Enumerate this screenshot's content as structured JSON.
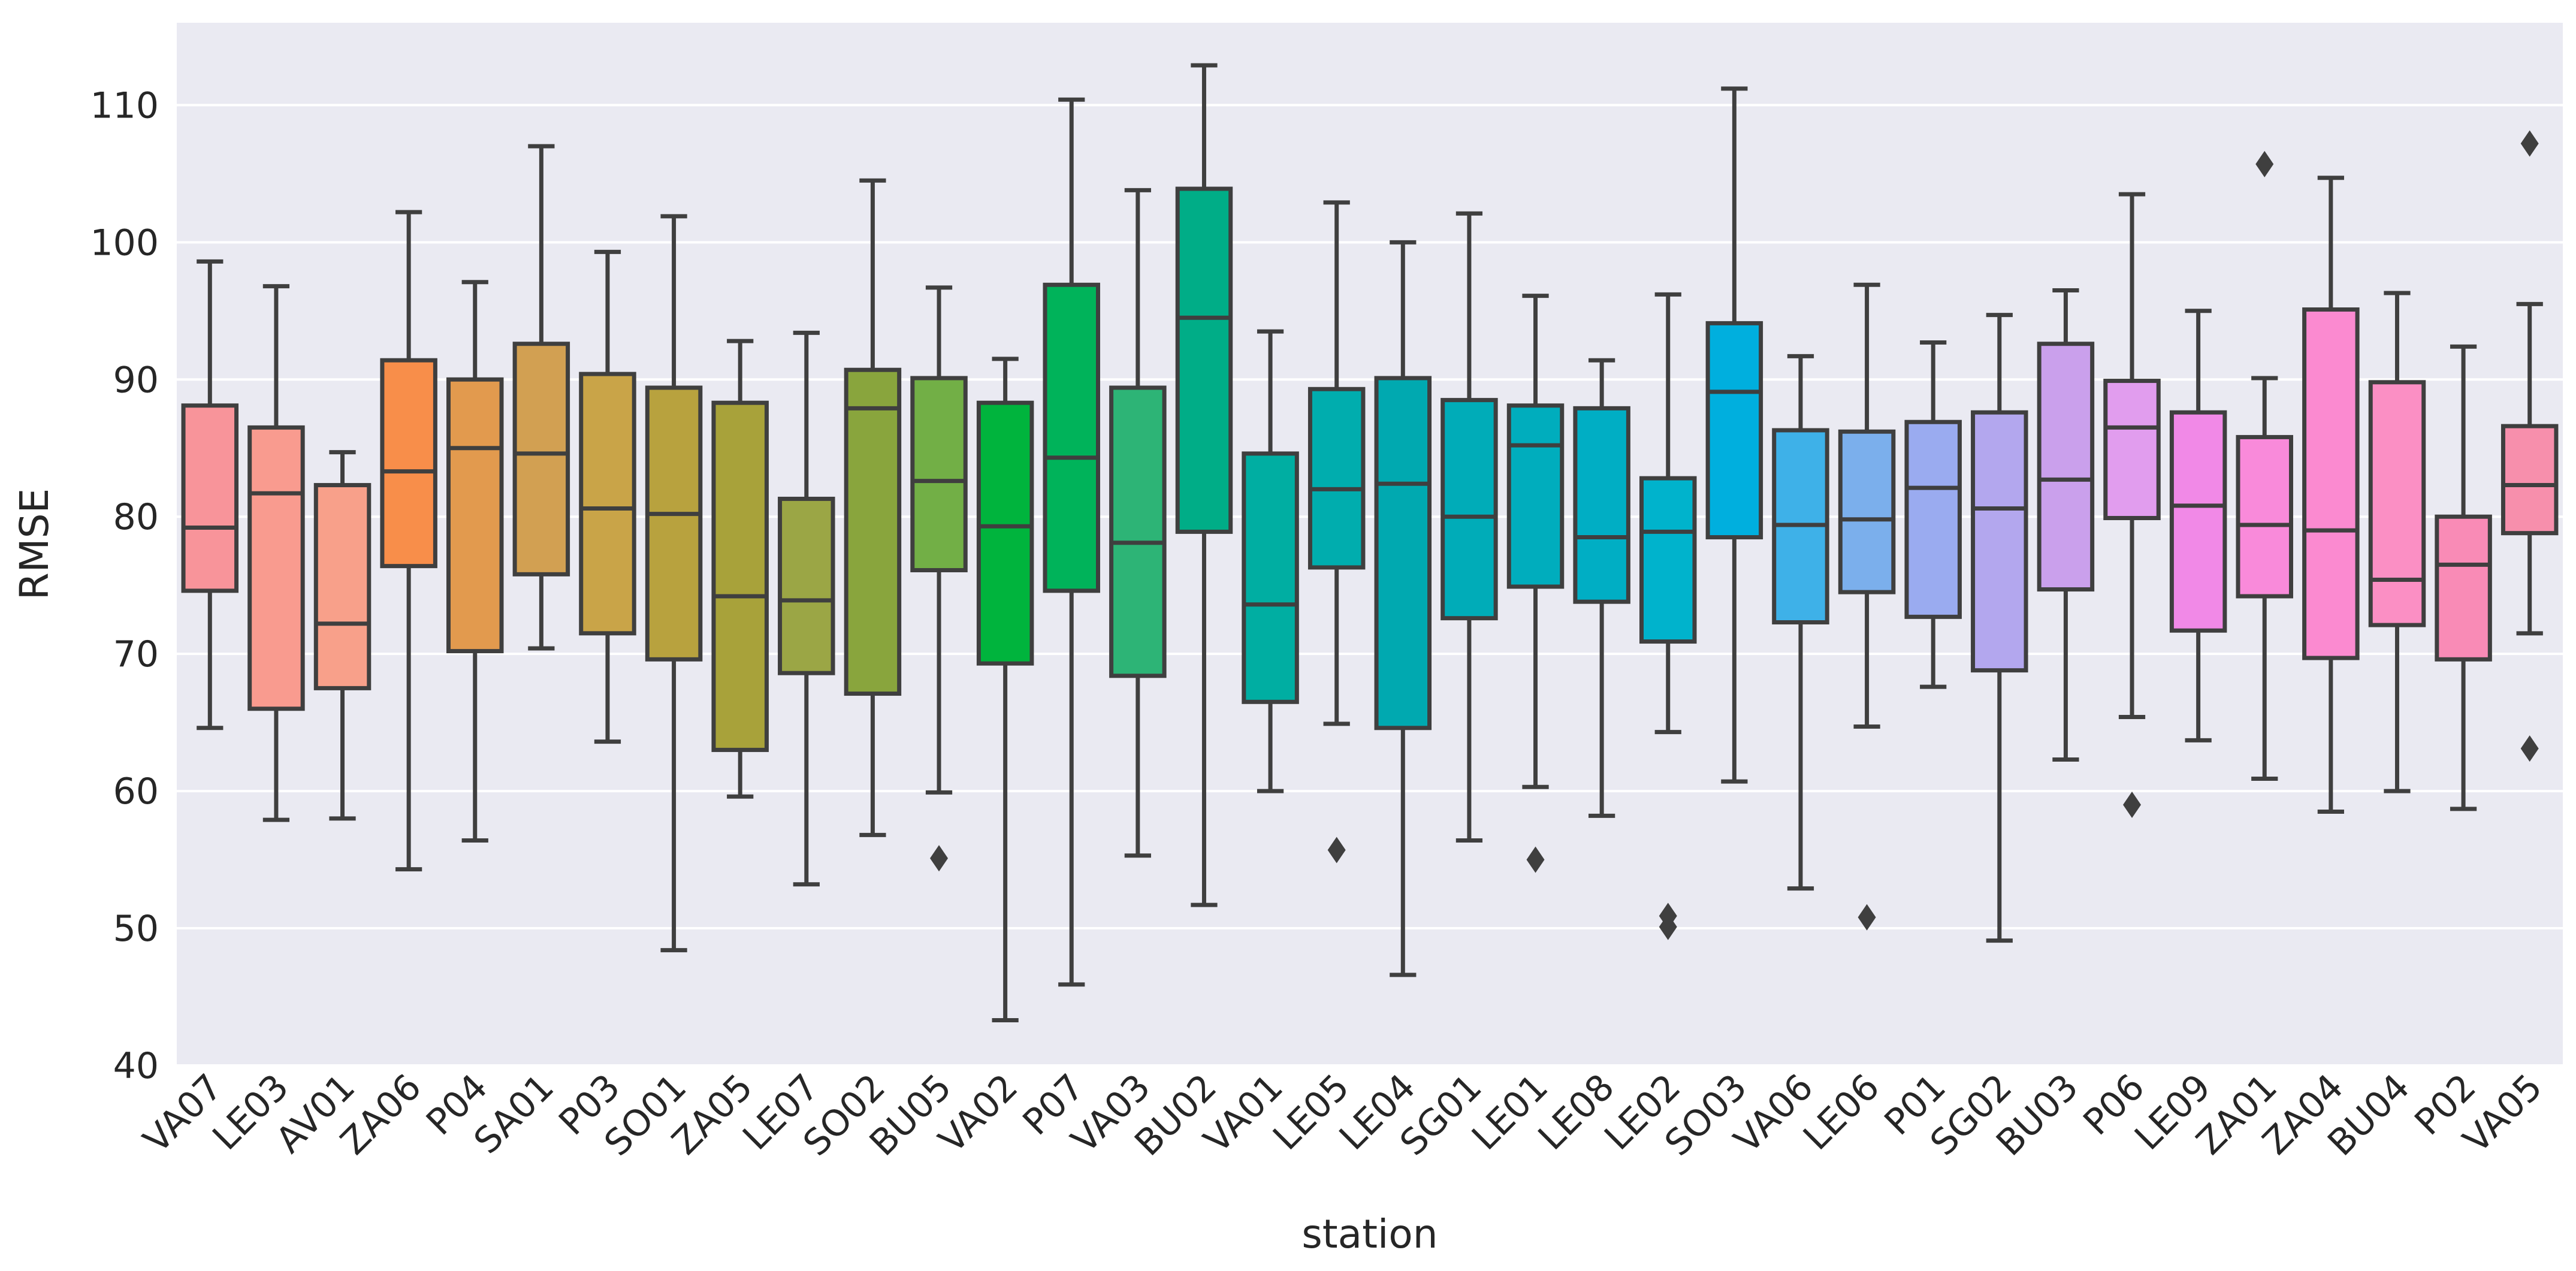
{
  "chart_data": {
    "type": "box",
    "xlabel": "station",
    "ylabel": "RMSE",
    "ylim": [
      40,
      116
    ],
    "yticks": [
      40,
      50,
      60,
      70,
      80,
      90,
      100,
      110
    ],
    "grid": true,
    "legend": "none",
    "categories": [
      "VA07",
      "LE03",
      "AV01",
      "ZA06",
      "P04",
      "SA01",
      "P03",
      "SO01",
      "ZA05",
      "LE07",
      "SO02",
      "BU05",
      "VA02",
      "P07",
      "VA03",
      "BU02",
      "VA01",
      "LE05",
      "LE04",
      "SG01",
      "LE01",
      "LE08",
      "LE02",
      "SO03",
      "VA06",
      "LE06",
      "P01",
      "SG02",
      "BU03",
      "P06",
      "LE09",
      "ZA01",
      "ZA04",
      "BU04",
      "P02",
      "VA05"
    ],
    "colors": [
      "#F8949A",
      "#F99B8F",
      "#F8A08A",
      "#F88E4A",
      "#E29A4E",
      "#D2A052",
      "#C9A448",
      "#B8A23E",
      "#A8A23A",
      "#9BA645",
      "#89A53D",
      "#72AF46",
      "#00B43D",
      "#00B35A",
      "#2DB476",
      "#00AD87",
      "#00AEA2",
      "#00ADAE",
      "#00A9B0",
      "#00ACB8",
      "#00ADBD",
      "#00AEC4",
      "#00B3CC",
      "#00AFDE",
      "#3EB1E8",
      "#7BAFEC",
      "#9AABF0",
      "#B3A7EE",
      "#CAA0EC",
      "#E19DEE",
      "#F189E7",
      "#F98ADA",
      "#FB8AD0",
      "#FB8FC4",
      "#F98BB6",
      "#F78FAC"
    ],
    "boxes": [
      {
        "whislo": 64.6,
        "q1": 74.6,
        "med": 79.2,
        "q3": 88.1,
        "whishi": 98.6,
        "fliers": []
      },
      {
        "whislo": 57.9,
        "q1": 66.0,
        "med": 81.7,
        "q3": 86.5,
        "whishi": 96.8,
        "fliers": []
      },
      {
        "whislo": 58.0,
        "q1": 67.5,
        "med": 72.2,
        "q3": 82.3,
        "whishi": 84.7,
        "fliers": []
      },
      {
        "whislo": 54.3,
        "q1": 76.4,
        "med": 83.3,
        "q3": 91.4,
        "whishi": 102.2,
        "fliers": []
      },
      {
        "whislo": 56.4,
        "q1": 70.2,
        "med": 85.0,
        "q3": 90.0,
        "whishi": 97.1,
        "fliers": []
      },
      {
        "whislo": 70.4,
        "q1": 75.8,
        "med": 84.6,
        "q3": 92.6,
        "whishi": 107.0,
        "fliers": []
      },
      {
        "whislo": 63.6,
        "q1": 71.5,
        "med": 80.6,
        "q3": 90.4,
        "whishi": 99.3,
        "fliers": []
      },
      {
        "whislo": 48.4,
        "q1": 69.6,
        "med": 80.2,
        "q3": 89.4,
        "whishi": 101.9,
        "fliers": []
      },
      {
        "whislo": 59.6,
        "q1": 63.0,
        "med": 74.2,
        "q3": 88.3,
        "whishi": 92.8,
        "fliers": []
      },
      {
        "whislo": 53.2,
        "q1": 68.6,
        "med": 73.9,
        "q3": 81.3,
        "whishi": 93.4,
        "fliers": []
      },
      {
        "whislo": 56.8,
        "q1": 67.1,
        "med": 87.9,
        "q3": 90.7,
        "whishi": 104.5,
        "fliers": []
      },
      {
        "whislo": 59.9,
        "q1": 76.1,
        "med": 82.6,
        "q3": 90.1,
        "whishi": 96.7,
        "fliers": [
          55.1
        ]
      },
      {
        "whislo": 43.3,
        "q1": 69.3,
        "med": 79.3,
        "q3": 88.3,
        "whishi": 91.5,
        "fliers": []
      },
      {
        "whislo": 45.9,
        "q1": 74.6,
        "med": 84.3,
        "q3": 96.9,
        "whishi": 110.4,
        "fliers": []
      },
      {
        "whislo": 55.3,
        "q1": 68.4,
        "med": 78.1,
        "q3": 89.4,
        "whishi": 103.8,
        "fliers": []
      },
      {
        "whislo": 51.7,
        "q1": 78.9,
        "med": 94.5,
        "q3": 103.9,
        "whishi": 112.9,
        "fliers": []
      },
      {
        "whislo": 60.0,
        "q1": 66.5,
        "med": 73.6,
        "q3": 84.6,
        "whishi": 93.5,
        "fliers": []
      },
      {
        "whislo": 64.9,
        "q1": 76.3,
        "med": 82.0,
        "q3": 89.3,
        "whishi": 102.9,
        "fliers": [
          55.7
        ]
      },
      {
        "whislo": 46.6,
        "q1": 64.6,
        "med": 82.4,
        "q3": 90.1,
        "whishi": 100.0,
        "fliers": []
      },
      {
        "whislo": 56.4,
        "q1": 72.6,
        "med": 80.0,
        "q3": 88.5,
        "whishi": 102.1,
        "fliers": []
      },
      {
        "whislo": 60.3,
        "q1": 74.9,
        "med": 85.2,
        "q3": 88.1,
        "whishi": 96.1,
        "fliers": [
          55.0
        ]
      },
      {
        "whislo": 58.2,
        "q1": 73.8,
        "med": 78.5,
        "q3": 87.9,
        "whishi": 91.4,
        "fliers": []
      },
      {
        "whislo": 64.3,
        "q1": 70.9,
        "med": 78.9,
        "q3": 82.8,
        "whishi": 96.2,
        "fliers": [
          50.1,
          50.9
        ]
      },
      {
        "whislo": 60.7,
        "q1": 78.5,
        "med": 89.1,
        "q3": 94.1,
        "whishi": 111.2,
        "fliers": []
      },
      {
        "whislo": 52.9,
        "q1": 72.3,
        "med": 79.4,
        "q3": 86.3,
        "whishi": 91.7,
        "fliers": []
      },
      {
        "whislo": 64.7,
        "q1": 74.5,
        "med": 79.8,
        "q3": 86.2,
        "whishi": 96.9,
        "fliers": [
          50.8
        ]
      },
      {
        "whislo": 67.6,
        "q1": 72.7,
        "med": 82.1,
        "q3": 86.9,
        "whishi": 92.7,
        "fliers": []
      },
      {
        "whislo": 49.1,
        "q1": 68.8,
        "med": 80.6,
        "q3": 87.6,
        "whishi": 94.7,
        "fliers": []
      },
      {
        "whislo": 62.3,
        "q1": 74.7,
        "med": 82.7,
        "q3": 92.6,
        "whishi": 96.5,
        "fliers": []
      },
      {
        "whislo": 65.4,
        "q1": 79.9,
        "med": 86.5,
        "q3": 89.9,
        "whishi": 103.5,
        "fliers": [
          59.0
        ]
      },
      {
        "whislo": 63.7,
        "q1": 71.7,
        "med": 80.8,
        "q3": 87.6,
        "whishi": 95.0,
        "fliers": []
      },
      {
        "whislo": 60.9,
        "q1": 74.2,
        "med": 79.4,
        "q3": 85.8,
        "whishi": 90.1,
        "fliers": [
          105.7
        ]
      },
      {
        "whislo": 58.5,
        "q1": 69.7,
        "med": 79.0,
        "q3": 95.1,
        "whishi": 104.7,
        "fliers": []
      },
      {
        "whislo": 60.0,
        "q1": 72.1,
        "med": 75.4,
        "q3": 89.8,
        "whishi": 96.3,
        "fliers": []
      },
      {
        "whislo": 58.7,
        "q1": 69.6,
        "med": 76.5,
        "q3": 80.0,
        "whishi": 92.4,
        "fliers": []
      },
      {
        "whislo": 71.5,
        "q1": 78.8,
        "med": 82.3,
        "q3": 86.6,
        "whishi": 95.5,
        "fliers": [
          63.1,
          107.2
        ]
      }
    ]
  }
}
